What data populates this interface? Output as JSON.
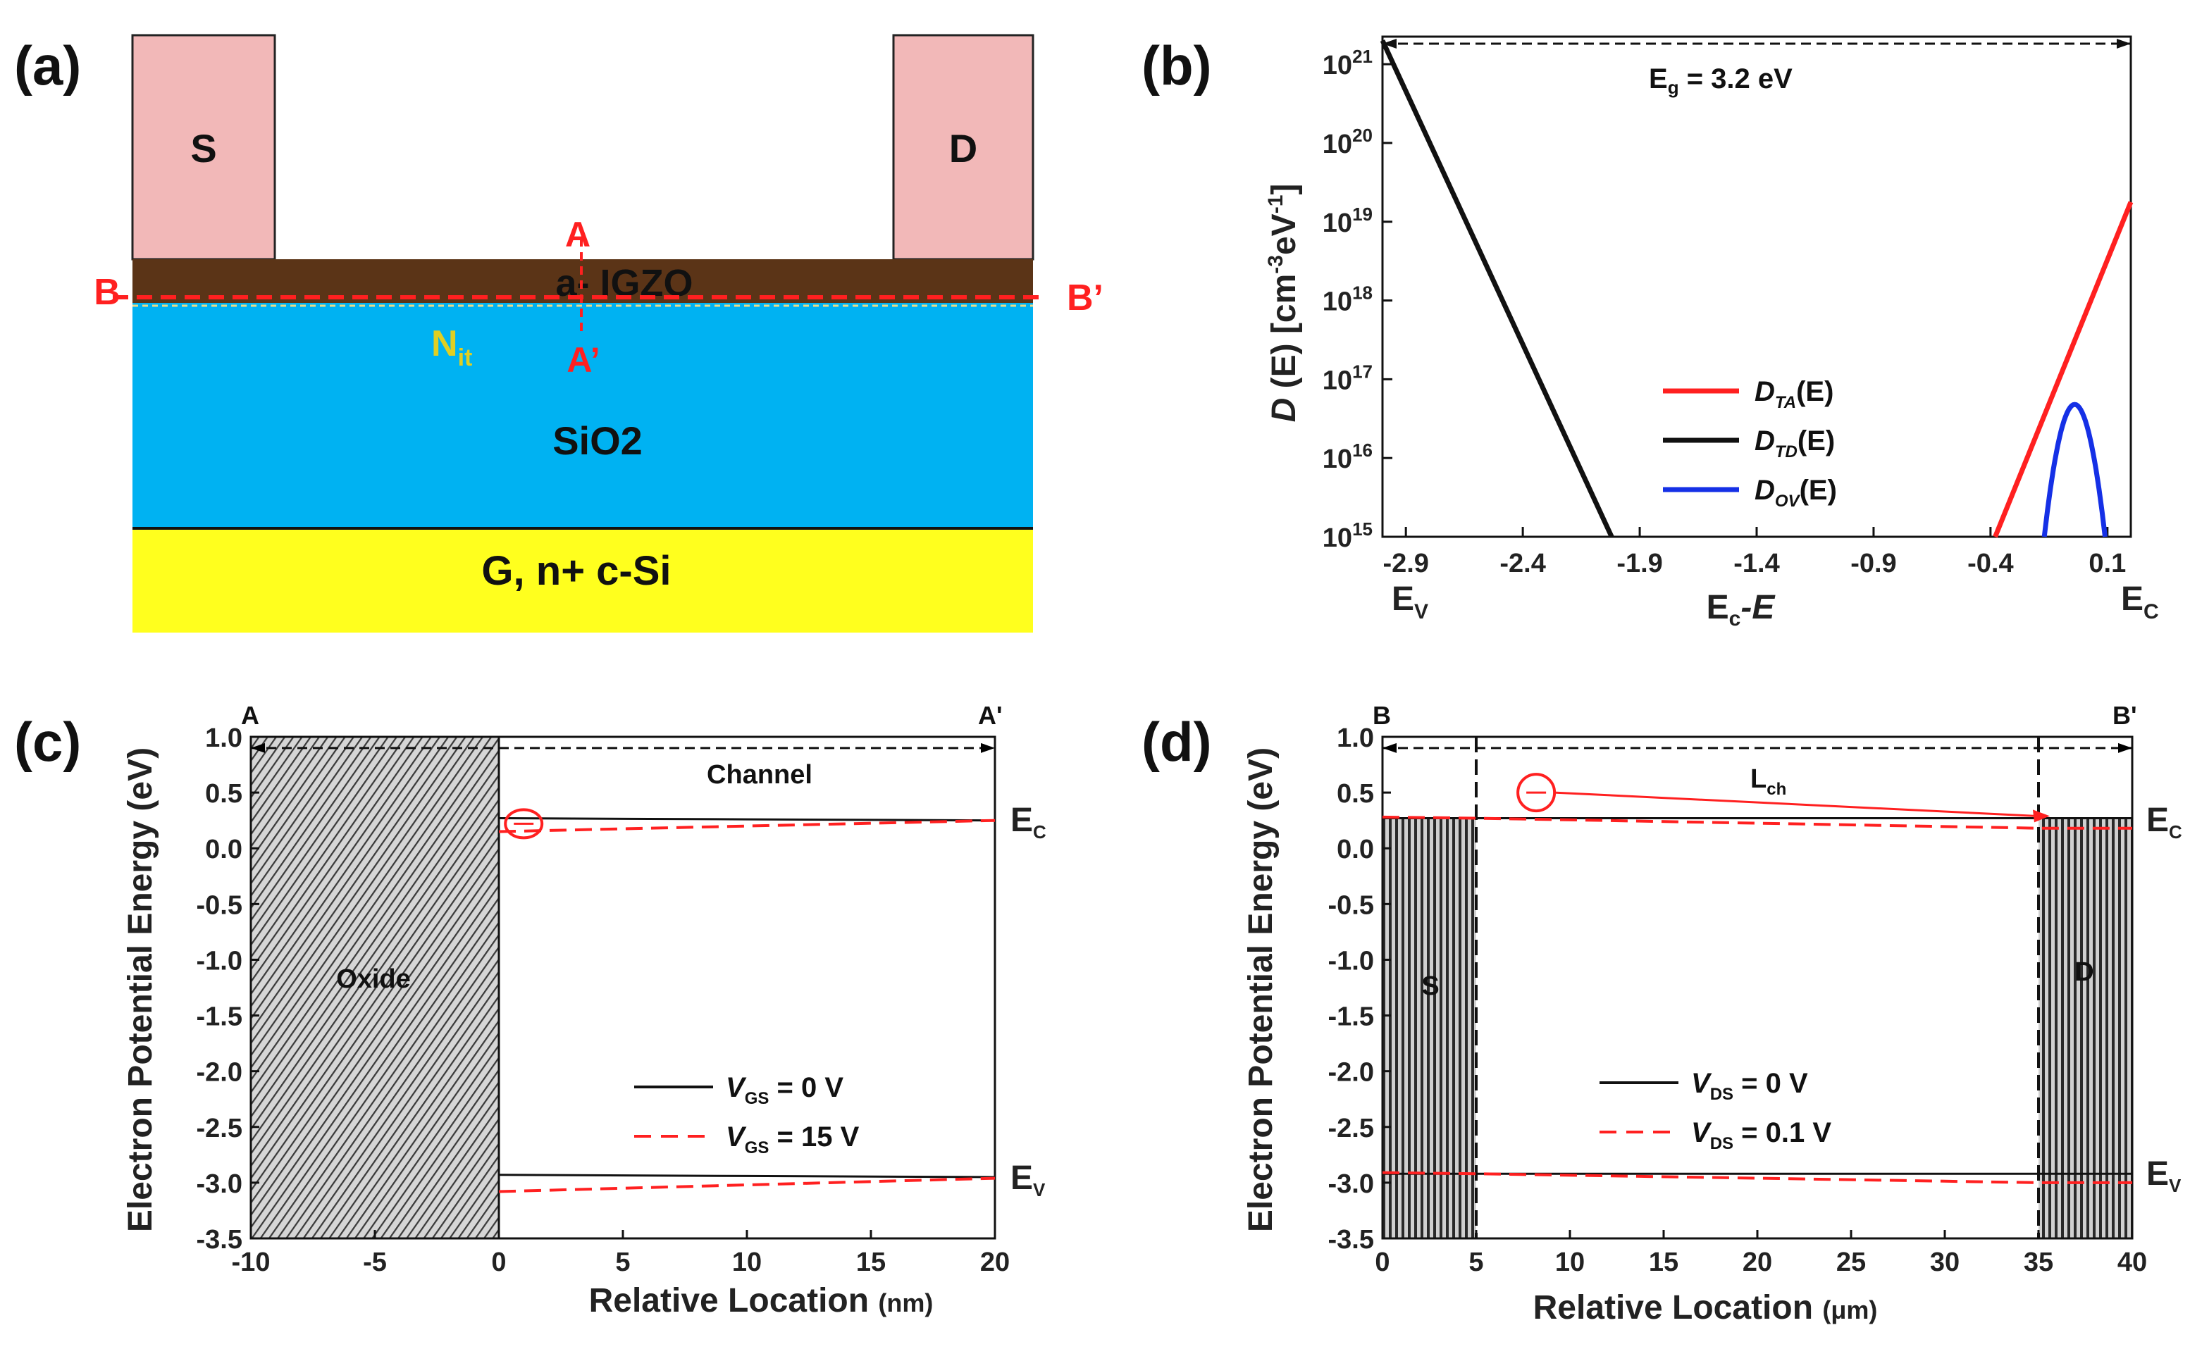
{
  "panels": {
    "a": {
      "label": "(a)",
      "source": "S",
      "drain": "D",
      "channel_layer": "a- IGZO",
      "cut_a": "A",
      "cut_a_prime": "A’",
      "cut_b": "B",
      "cut_b_prime": "B’",
      "nit_main": "N",
      "nit_sub": "it",
      "oxide": "SiO2",
      "gate": "G, n+ c-Si",
      "colors": {
        "contact": "#f2b8b8",
        "igzo": "#5b3417",
        "sio2": "#00b2f2",
        "gate": "#ffff1e",
        "cut": "#ff2020",
        "nit": "#e0cf22"
      }
    },
    "b": {
      "label": "(b)",
      "eg_main": "E",
      "eg_sub": "g",
      "eg_rest": " = 3.2 eV",
      "ylabel_d": "D",
      "ylabel_rest": " (E) [cm",
      "ylabel_sup1": "-3",
      "ylabel_mid": "eV",
      "ylabel_sup2": "-1",
      "ylabel_end": "]",
      "ytick_base": "10",
      "xlabel_main": "E",
      "xlabel_sub": "c",
      "xlabel_rest": "-E",
      "ev_main": "E",
      "ev_sub": "V",
      "ec_main": "E",
      "ec_sub": "C",
      "legend": [
        {
          "main": "D",
          "sub": "TA",
          "rest": "(E)",
          "color": "#ff2020"
        },
        {
          "main": "D",
          "sub": "TD",
          "rest": "(E)",
          "color": "#111111"
        },
        {
          "main": "D",
          "sub": "OV",
          "rest": "(E)",
          "color": "#1530e6"
        }
      ]
    },
    "c": {
      "label": "(c)",
      "ylabel": "Electron Potential Energy (eV)",
      "xlabel": "Relative Location",
      "xunit": "(nm)",
      "left_marker": "A",
      "right_marker": "A'",
      "channel": "Channel",
      "oxide": "Oxide",
      "ec_main": "E",
      "ec_sub": "C",
      "ev_main": "E",
      "ev_sub": "V",
      "legend": [
        {
          "main": "V",
          "sub": "GS",
          "rest": " = 0 V",
          "style": "solid"
        },
        {
          "main": "V",
          "sub": "GS",
          "rest": " = 15 V",
          "style": "dashed"
        }
      ]
    },
    "d": {
      "label": "(d)",
      "ylabel": "Electron Potential Energy (eV)",
      "xlabel": "Relative Location",
      "xunit": "(μm)",
      "left_marker": "B",
      "right_marker": "B'",
      "lch_main": "L",
      "lch_sub": "ch",
      "source": "S",
      "drain": "D",
      "ec_main": "E",
      "ec_sub": "C",
      "ev_main": "E",
      "ev_sub": "V",
      "legend": [
        {
          "main": "V",
          "sub": "DS",
          "rest": " = 0 V",
          "style": "solid"
        },
        {
          "main": "V",
          "sub": "DS",
          "rest": " = 0.1 V",
          "style": "dashed"
        }
      ]
    }
  },
  "chart_data": [
    {
      "panel": "b",
      "type": "line",
      "title": "",
      "xlabel": "Ec-E",
      "ylabel": "D(E) [cm-3 eV-1]",
      "xlim": [
        -3.0,
        0.2
      ],
      "ylim_log10": [
        15,
        21.35
      ],
      "xticks": [
        -2.9,
        -2.4,
        -1.9,
        -1.4,
        -0.9,
        -0.4,
        0.1
      ],
      "xtick_labels": [
        "-2.9",
        "-2.4",
        "-1.9",
        "-1.4",
        "-0.9",
        "-0.4",
        "0.1"
      ],
      "yticks_exp": [
        15,
        16,
        17,
        18,
        19,
        20,
        21
      ],
      "series": [
        {
          "name": "D_TA(E)",
          "x": [
            -0.38,
            0.2
          ],
          "log10_y": [
            15,
            19.25
          ]
        },
        {
          "name": "D_TD(E)",
          "x": [
            -3.0,
            -2.02
          ],
          "log10_y": [
            21.3,
            15
          ]
        },
        {
          "name": "D_OV(E)",
          "center": -0.04,
          "log10_peak": 16.68,
          "half_width": 0.13
        }
      ],
      "annotation": "Eg = 3.2 eV"
    },
    {
      "panel": "c",
      "type": "line",
      "xlabel": "Relative Location (nm)",
      "ylabel": "Electron Potential Energy (eV)",
      "xlim": [
        -10,
        20
      ],
      "ylim": [
        -3.5,
        1.0
      ],
      "xticks": [
        -10,
        -5,
        0,
        5,
        10,
        15,
        20
      ],
      "xtick_labels": [
        "-10",
        "-5",
        "0",
        "5",
        "10",
        "15",
        "20"
      ],
      "yticks": [
        1.0,
        0.5,
        0.0,
        -0.5,
        -1.0,
        -1.5,
        -2.0,
        -2.5,
        -3.0,
        -3.5
      ],
      "ytick_labels": [
        "1.0",
        "0.5",
        "0.0",
        "-0.5",
        "-1.0",
        "-1.5",
        "-2.0",
        "-2.5",
        "-3.0",
        "-3.5"
      ],
      "oxide_region": [
        -10,
        0
      ],
      "series": [
        {
          "name": "VGS = 0 V (Ec)",
          "x": [
            0,
            10,
            20
          ],
          "y": [
            0.27,
            0.26,
            0.25
          ]
        },
        {
          "name": "VGS = 15 V (Ec)",
          "x": [
            0,
            20
          ],
          "y": [
            0.15,
            0.25
          ]
        },
        {
          "name": "VGS = 0 V (Ev)",
          "x": [
            0,
            10,
            20
          ],
          "y": [
            -2.93,
            -2.94,
            -2.95
          ]
        },
        {
          "name": "VGS = 15 V (Ev)",
          "x": [
            0,
            20
          ],
          "y": [
            -3.08,
            -2.96
          ]
        }
      ]
    },
    {
      "panel": "d",
      "type": "line",
      "xlabel": "Relative Location (μm)",
      "ylabel": "Electron Potential Energy (eV)",
      "xlim": [
        0,
        40
      ],
      "ylim": [
        -3.5,
        1.0
      ],
      "xticks": [
        0,
        5,
        10,
        15,
        20,
        25,
        30,
        35,
        40
      ],
      "xtick_labels": [
        "0",
        "5",
        "10",
        "15",
        "20",
        "25",
        "30",
        "35",
        "40"
      ],
      "yticks": [
        1.0,
        0.5,
        0.0,
        -0.5,
        -1.0,
        -1.5,
        -2.0,
        -2.5,
        -3.0,
        -3.5
      ],
      "ytick_labels": [
        "1.0",
        "0.5",
        "0.0",
        "-0.5",
        "-1.0",
        "-1.5",
        "-2.0",
        "-2.5",
        "-3.0",
        "-3.5"
      ],
      "source_region": [
        0,
        5
      ],
      "drain_region": [
        35,
        40
      ],
      "series": [
        {
          "name": "VDS = 0 V (Ec)",
          "x": [
            0,
            40
          ],
          "y": [
            0.27,
            0.27
          ]
        },
        {
          "name": "VDS = 0.1 V (Ec)",
          "x": [
            0,
            5,
            35,
            40
          ],
          "y": [
            0.28,
            0.27,
            0.18,
            0.18
          ]
        },
        {
          "name": "VDS = 0 V (Ev)",
          "x": [
            0,
            40
          ],
          "y": [
            -2.92,
            -2.92
          ]
        },
        {
          "name": "VDS = 0.1 V (Ev)",
          "x": [
            0,
            5,
            35,
            40
          ],
          "y": [
            -2.91,
            -2.92,
            -3.0,
            -3.0
          ]
        }
      ]
    }
  ]
}
